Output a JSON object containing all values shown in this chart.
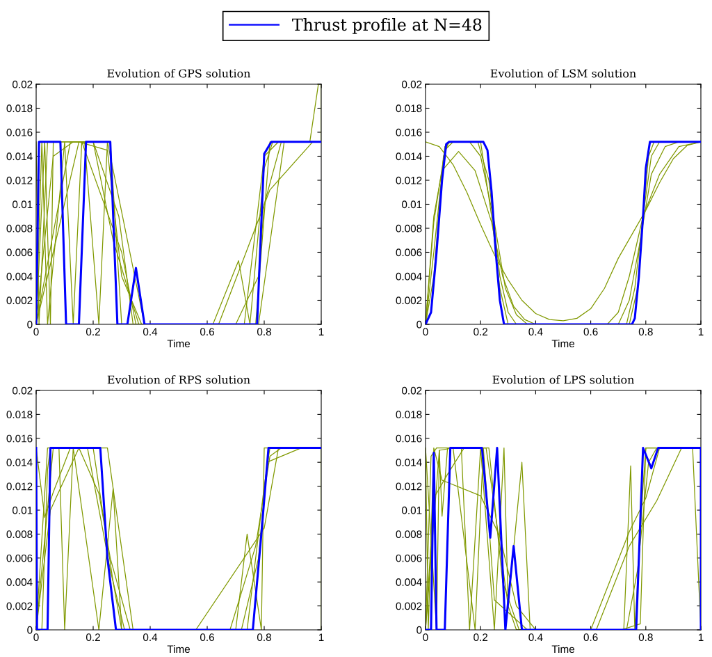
{
  "chart_data": [
    {
      "type": "line",
      "title": "Evolution of GPS solution",
      "xlabel": "Time",
      "xlim": [
        0,
        1
      ],
      "ylim": [
        0,
        0.02
      ],
      "xticks": [
        0,
        0.2,
        0.4,
        0.6,
        0.8,
        1
      ],
      "yticks": [
        0,
        0.002,
        0.004,
        0.006,
        0.008,
        0.01,
        0.012,
        0.014,
        0.016,
        0.018,
        0.02
      ],
      "legend": "top",
      "series": [
        {
          "name": "Thrust profile at N=48",
          "color": "#0000ff",
          "x": [
            0,
            0.01,
            0.085,
            0.105,
            0.15,
            0.175,
            0.26,
            0.285,
            0.32,
            0.35,
            0.38,
            0.775,
            0.8,
            0.825,
            1
          ],
          "values": [
            0,
            0.0152,
            0.0152,
            0,
            0,
            0.0152,
            0.0152,
            0,
            0,
            0.0047,
            0,
            0,
            0.0142,
            0.0152,
            0.0152
          ]
        },
        {
          "color": "#809900",
          "x": [
            0,
            0.01,
            0.04,
            0.26,
            0.3,
            0.77,
            0.82,
            1
          ],
          "values": [
            0.0152,
            0,
            0.0152,
            0.0152,
            0,
            0,
            0.0152,
            0.0152
          ]
        },
        {
          "color": "#809900",
          "x": [
            0,
            0.03,
            0.05,
            0.06,
            0.2,
            0.29,
            0.34,
            0.73,
            0.8,
            0.85,
            1
          ],
          "values": [
            0,
            0.0152,
            0,
            0.0152,
            0.0152,
            0.009,
            0,
            0,
            0.014,
            0.0152,
            0.0152
          ]
        },
        {
          "color": "#809900",
          "x": [
            0,
            0.05,
            0.15,
            0.25,
            0.3,
            0.37,
            0.62,
            0.71,
            0.75,
            0.78,
            0.87,
            0.96,
            0.99
          ],
          "values": [
            0,
            0.005,
            0.0152,
            0.0145,
            0.004,
            0,
            0,
            0.0053,
            0,
            0,
            0.0152,
            0.0152,
            0.02
          ]
        },
        {
          "color": "#809900",
          "x": [
            0,
            0.06,
            0.13,
            0.17,
            0.22,
            0.25,
            0.38,
            0.64,
            0.82,
            0.97,
            1
          ],
          "values": [
            0,
            0.014,
            0.0152,
            0.0152,
            0,
            0.0152,
            0,
            0,
            0.0112,
            0.0152,
            0.0152
          ]
        },
        {
          "color": "#809900",
          "x": [
            0,
            0.02,
            0.04,
            0.1,
            0.13,
            0.16,
            0.3,
            0.35,
            0.75,
            0.8,
            0.83,
            1,
            1
          ],
          "values": [
            0,
            0.0152,
            0,
            0.0152,
            0,
            0.0152,
            0.006,
            0,
            0,
            0.013,
            0.0152,
            0.0152,
            0.02
          ]
        },
        {
          "color": "#809900",
          "x": [
            0,
            0.12,
            0.2,
            0.27,
            0.36,
            0.7,
            0.78,
            0.8,
            0.86,
            1
          ],
          "values": [
            0,
            0.0152,
            0.0152,
            0.007,
            0,
            0,
            0.004,
            0.01,
            0.0152,
            0.0152
          ]
        }
      ]
    },
    {
      "type": "line",
      "title": "Evolution of LSM solution",
      "xlabel": "Time",
      "xlim": [
        0,
        1
      ],
      "ylim": [
        0,
        0.02
      ],
      "xticks": [
        0,
        0.2,
        0.4,
        0.6,
        0.8,
        1
      ],
      "yticks": [
        0,
        0.002,
        0.004,
        0.006,
        0.008,
        0.01,
        0.012,
        0.014,
        0.016,
        0.018,
        0.02
      ],
      "series": [
        {
          "color": "#0000ff",
          "x": [
            0,
            0.02,
            0.04,
            0.06,
            0.075,
            0.085,
            0.21,
            0.225,
            0.24,
            0.255,
            0.27,
            0.285,
            0.75,
            0.76,
            0.775,
            0.79,
            0.8,
            0.815,
            1
          ],
          "values": [
            0,
            0.001,
            0.006,
            0.012,
            0.015,
            0.0152,
            0.0152,
            0.0145,
            0.011,
            0.006,
            0.002,
            0,
            0,
            0.0005,
            0.004,
            0.009,
            0.013,
            0.0152,
            0.0152
          ]
        },
        {
          "color": "#809900",
          "x": [
            0,
            0.05,
            0.1,
            0.15,
            0.2,
            0.25,
            0.3,
            0.35,
            0.4,
            0.45,
            0.5,
            0.55,
            0.6,
            0.65,
            0.7,
            0.75,
            0.8,
            0.85,
            0.9,
            0.95,
            1
          ],
          "values": [
            0.0152,
            0.0148,
            0.0133,
            0.011,
            0.0083,
            0.0058,
            0.0037,
            0.002,
            0.0009,
            0.0004,
            0.0003,
            0.0005,
            0.0013,
            0.003,
            0.0055,
            0.0075,
            0.0095,
            0.0118,
            0.0138,
            0.0149,
            0.0152
          ]
        },
        {
          "color": "#809900",
          "x": [
            0,
            0.03,
            0.06,
            0.12,
            0.18,
            0.24,
            0.28,
            0.32,
            0.36,
            0.4,
            0.66,
            0.7,
            0.74,
            0.79,
            0.85,
            0.92,
            1
          ],
          "values": [
            0,
            0.009,
            0.0128,
            0.0144,
            0.0128,
            0.0085,
            0.004,
            0.0015,
            0.0004,
            0,
            0,
            0.001,
            0.004,
            0.009,
            0.0125,
            0.0148,
            0.0152
          ]
        },
        {
          "color": "#809900",
          "x": [
            0,
            0.03,
            0.07,
            0.1,
            0.16,
            0.2,
            0.25,
            0.29,
            0.33,
            0.37,
            0.7,
            0.74,
            0.78,
            0.82,
            0.87,
            0.92,
            1
          ],
          "values": [
            0,
            0.0085,
            0.0145,
            0.0152,
            0.0152,
            0.014,
            0.0085,
            0.003,
            0.0008,
            0,
            0,
            0.002,
            0.007,
            0.0125,
            0.0148,
            0.0152,
            0.0152
          ]
        },
        {
          "color": "#809900",
          "x": [
            0,
            0.03,
            0.07,
            0.09,
            0.19,
            0.23,
            0.27,
            0.3,
            0.33,
            0.73,
            0.76,
            0.79,
            0.82,
            0.85,
            1
          ],
          "values": [
            0,
            0.006,
            0.0148,
            0.0152,
            0.0152,
            0.012,
            0.004,
            0.001,
            0,
            0,
            0.003,
            0.009,
            0.014,
            0.0152,
            0.0152
          ]
        },
        {
          "color": "#809900",
          "x": [
            0,
            0.03,
            0.065,
            0.085,
            0.2,
            0.24,
            0.27,
            0.3,
            0.74,
            0.77,
            0.79,
            0.81,
            0.83,
            1
          ],
          "values": [
            0,
            0.004,
            0.014,
            0.0152,
            0.0152,
            0.009,
            0.003,
            0,
            0,
            0.003,
            0.009,
            0.014,
            0.0152,
            0.0152
          ]
        }
      ]
    },
    {
      "type": "line",
      "title": "Evolution of RPS solution",
      "xlabel": "Time",
      "xlim": [
        0,
        1
      ],
      "ylim": [
        0,
        0.02
      ],
      "xticks": [
        0,
        0.2,
        0.4,
        0.6,
        0.8,
        1
      ],
      "yticks": [
        0,
        0.002,
        0.004,
        0.006,
        0.008,
        0.01,
        0.012,
        0.014,
        0.016,
        0.018,
        0.02
      ],
      "series": [
        {
          "color": "#0000ff",
          "x": [
            0,
            0.003,
            0.04,
            0.05,
            0.225,
            0.25,
            0.28,
            0.76,
            0.79,
            0.815,
            1
          ],
          "values": [
            0.0152,
            0,
            0,
            0.0152,
            0.0152,
            0.006,
            0,
            0,
            0.008,
            0.0152,
            0.0152
          ]
        },
        {
          "color": "#809900",
          "x": [
            0,
            0.03,
            0.06,
            0.12,
            0.2,
            0.27,
            0.3,
            0.7,
            0.74,
            0.79,
            0.8,
            1
          ],
          "values": [
            0.0152,
            0.0094,
            0.0115,
            0.0152,
            0.0152,
            0.004,
            0,
            0,
            0.008,
            0,
            0.0152,
            0.0152
          ]
        },
        {
          "color": "#809900",
          "x": [
            0,
            0.02,
            0.04,
            0.05,
            0.08,
            0.1,
            0.13,
            0.22,
            0.27,
            0.3,
            0.56,
            0.8,
            0.85,
            1
          ],
          "values": [
            0,
            0,
            0.0134,
            0.0152,
            0.0152,
            0,
            0.0152,
            0,
            0.0118,
            0,
            0,
            0.0085,
            0.0152,
            0.0152
          ]
        },
        {
          "color": "#809900",
          "x": [
            0,
            0.05,
            0.15,
            0.22,
            0.26,
            0.33,
            0.68,
            0.77,
            0.82,
            0.86,
            1
          ],
          "values": [
            0,
            0.01,
            0.0152,
            0.0114,
            0.006,
            0,
            0,
            0.007,
            0.0145,
            0.0152,
            0.0152
          ]
        },
        {
          "color": "#809900",
          "x": [
            0,
            0.04,
            0.25,
            0.34,
            0.72,
            0.78,
            0.81,
            0.93,
            1
          ],
          "values": [
            0,
            0.0152,
            0.0152,
            0,
            0,
            0.006,
            0.014,
            0.0152,
            0.0152
          ]
        },
        {
          "color": "#809900",
          "x": [
            0,
            0.06,
            0.18,
            0.26,
            0.31,
            0.74,
            0.8,
            0.82,
            1,
            1
          ],
          "values": [
            0,
            0.0152,
            0.0152,
            0.005,
            0,
            0,
            0.012,
            0.0152,
            0.0152,
            0
          ]
        }
      ]
    },
    {
      "type": "line",
      "title": "Evolution of LPS solution",
      "xlabel": "Time",
      "xlim": [
        0,
        1
      ],
      "ylim": [
        0,
        0.02
      ],
      "xticks": [
        0,
        0.2,
        0.4,
        0.6,
        0.8,
        1
      ],
      "yticks": [
        0,
        0.002,
        0.004,
        0.006,
        0.008,
        0.01,
        0.012,
        0.014,
        0.016,
        0.018,
        0.02
      ],
      "series": [
        {
          "color": "#0000ff",
          "x": [
            0,
            0.02,
            0.03,
            0.04,
            0.07,
            0.09,
            0.205,
            0.235,
            0.26,
            0.29,
            0.32,
            0.35,
            0.765,
            0.79,
            0.82,
            0.845,
            1,
            1
          ],
          "values": [
            0,
            0,
            0.0148,
            0,
            0,
            0.0152,
            0.0152,
            0.0077,
            0.0152,
            0,
            0.007,
            0,
            0,
            0.0152,
            0.0135,
            0.0152,
            0.0152,
            0
          ]
        },
        {
          "color": "#809900",
          "x": [
            0,
            0.01,
            0.03,
            0.06,
            0.2,
            0.27,
            0.33,
            0.4,
            0.6,
            0.74,
            0.8,
            0.85,
            1
          ],
          "values": [
            0.0152,
            0,
            0.0152,
            0.0125,
            0.0112,
            0.0078,
            0.002,
            0,
            0,
            0.0082,
            0.011,
            0.0152,
            0.0152
          ]
        },
        {
          "color": "#809900",
          "x": [
            0,
            0.02,
            0.04,
            0.13,
            0.16,
            0.2,
            0.25,
            0.285,
            0.3,
            0.35,
            0.38,
            0.72,
            0.745,
            0.76,
            0.79,
            0.8,
            1
          ],
          "values": [
            0,
            0.0145,
            0.0152,
            0.0152,
            0,
            0.0152,
            0,
            0.0152,
            0.002,
            0.014,
            0,
            0,
            0.0137,
            0,
            0.012,
            0.0152,
            0.0152
          ]
        },
        {
          "color": "#809900",
          "x": [
            0,
            0.05,
            0.06,
            0.08,
            0.22,
            0.24,
            0.3,
            0.33,
            0.62,
            0.74,
            0.84,
            0.93,
            0.97,
            1
          ],
          "values": [
            0,
            0.015,
            0.0095,
            0.0152,
            0.0152,
            0.012,
            0.002,
            0,
            0,
            0.007,
            0.0108,
            0.0152,
            0.0152,
            0
          ]
        },
        {
          "color": "#809900",
          "x": [
            0,
            0.03,
            0.08,
            0.14,
            0.23,
            0.28,
            0.34,
            0.71,
            0.78,
            0.8,
            1
          ],
          "values": [
            0,
            0.011,
            0.013,
            0.0152,
            0.0152,
            0.004,
            0,
            0,
            0.0005,
            0.0152,
            0.0152
          ]
        },
        {
          "color": "#809900",
          "x": [
            0,
            0.04,
            0.05,
            0.1,
            0.18,
            0.21,
            0.25,
            0.37,
            0.73,
            0.77,
            0.81,
            0.84,
            1
          ],
          "values": [
            0.0152,
            0,
            0.015,
            0.0152,
            0,
            0.0152,
            0.0025,
            0,
            0,
            0.005,
            0.014,
            0.0152,
            0.0152
          ]
        }
      ]
    }
  ]
}
